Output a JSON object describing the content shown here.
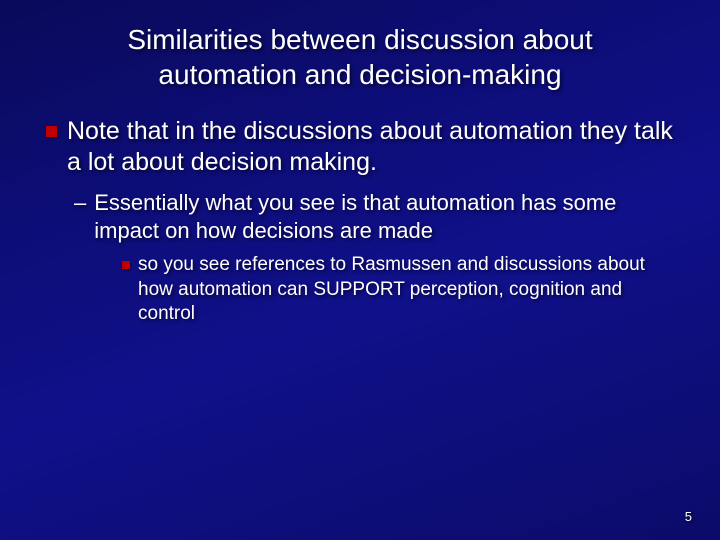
{
  "colors": {
    "background_gradient": [
      "#0a0a5a",
      "#0d0d78",
      "#10108a",
      "#0b0b6a"
    ],
    "text": "#ffffff",
    "bullet": "#c00000",
    "shadow": "rgba(0,0,0,0.6)"
  },
  "typography": {
    "family": "Arial",
    "title_size_pt": 28,
    "lvl1_size_pt": 25,
    "lvl2_size_pt": 22,
    "lvl3_size_pt": 19,
    "pagenum_size_pt": 13
  },
  "title": "Similarities between discussion about automation and decision-making",
  "bullets": {
    "lvl1": {
      "text": "Note that in the discussions about automation they talk a lot about decision making."
    },
    "lvl2": {
      "dash": "–",
      "text": "Essentially what you see is that automation has some impact on how decisions are made"
    },
    "lvl3": {
      "text": "so you see references to Rasmussen and discussions about how automation can SUPPORT perception, cognition and control"
    }
  },
  "page_number": "5"
}
